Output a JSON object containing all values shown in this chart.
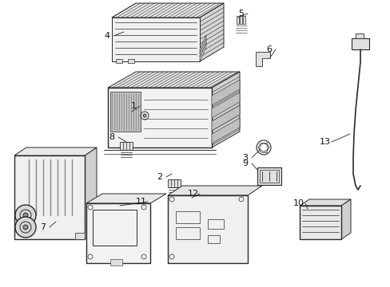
{
  "bg_color": "#ffffff",
  "line_color": "#2a2a2a",
  "hatch_color": "#555555",
  "figsize": [
    4.89,
    3.6
  ],
  "dpi": 100,
  "lw_main": 1.0,
  "lw_thin": 0.5,
  "lw_med": 0.7
}
